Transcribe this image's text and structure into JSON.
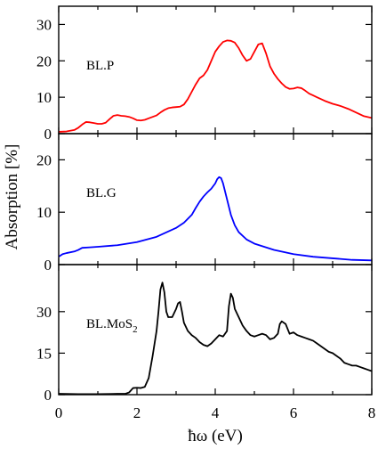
{
  "shared_y_label": "Absorption [%]",
  "x_label": "ħω (eV)",
  "chart_data": [
    {
      "type": "line",
      "panel_label": "BL.P",
      "color": "#ff0000",
      "xlim": [
        0,
        8
      ],
      "ylim": [
        0,
        35
      ],
      "yticks": [
        0,
        10,
        20,
        30
      ],
      "x": [
        0,
        0.2,
        0.4,
        0.5,
        0.6,
        0.7,
        0.8,
        0.9,
        1.0,
        1.1,
        1.2,
        1.3,
        1.4,
        1.5,
        1.6,
        1.7,
        1.8,
        1.9,
        2.0,
        2.1,
        2.2,
        2.3,
        2.4,
        2.5,
        2.6,
        2.7,
        2.8,
        2.9,
        3.0,
        3.1,
        3.2,
        3.3,
        3.4,
        3.5,
        3.6,
        3.7,
        3.8,
        3.9,
        4.0,
        4.1,
        4.2,
        4.3,
        4.4,
        4.5,
        4.6,
        4.7,
        4.8,
        4.9,
        5.0,
        5.1,
        5.2,
        5.3,
        5.4,
        5.5,
        5.6,
        5.7,
        5.8,
        5.9,
        6.0,
        6.1,
        6.2,
        6.3,
        6.4,
        6.5,
        6.6,
        6.8,
        7.0,
        7.2,
        7.4,
        7.6,
        7.8,
        8.0
      ],
      "y": [
        0.5,
        0.6,
        1.0,
        1.6,
        2.5,
        3.2,
        3.1,
        2.9,
        2.7,
        2.7,
        3.0,
        4.0,
        4.9,
        5.1,
        4.9,
        4.8,
        4.6,
        4.2,
        3.7,
        3.6,
        3.8,
        4.2,
        4.6,
        5.0,
        5.8,
        6.5,
        7.0,
        7.2,
        7.3,
        7.4,
        8.0,
        9.5,
        11.5,
        13.5,
        15.2,
        16.0,
        17.5,
        20.0,
        22.5,
        24.0,
        25.2,
        25.6,
        25.5,
        25.0,
        23.5,
        21.5,
        20.0,
        20.5,
        22.5,
        24.5,
        24.8,
        22.0,
        18.5,
        16.5,
        15.0,
        13.8,
        12.8,
        12.3,
        12.4,
        12.7,
        12.5,
        11.8,
        11.0,
        10.5,
        10.0,
        9.0,
        8.2,
        7.6,
        6.8,
        5.8,
        4.8,
        4.3
      ]
    },
    {
      "type": "line",
      "panel_label": "BL.G",
      "color": "#0000ff",
      "xlim": [
        0,
        8
      ],
      "ylim": [
        0,
        25
      ],
      "yticks": [
        0,
        10,
        20
      ],
      "x": [
        0,
        0.1,
        0.2,
        0.4,
        0.5,
        0.6,
        0.8,
        1.0,
        1.5,
        2.0,
        2.5,
        3.0,
        3.2,
        3.4,
        3.5,
        3.6,
        3.7,
        3.8,
        3.9,
        4.0,
        4.05,
        4.1,
        4.15,
        4.2,
        4.3,
        4.4,
        4.5,
        4.6,
        4.8,
        5.0,
        5.5,
        6.0,
        6.5,
        7.0,
        7.5,
        8.0
      ],
      "y": [
        1.5,
        2.0,
        2.2,
        2.5,
        2.8,
        3.2,
        3.3,
        3.4,
        3.7,
        4.3,
        5.3,
        7.0,
        8.0,
        9.5,
        10.8,
        12.0,
        13.0,
        13.8,
        14.5,
        15.5,
        16.3,
        16.7,
        16.5,
        15.5,
        12.5,
        9.5,
        7.5,
        6.2,
        4.8,
        4.0,
        2.8,
        2.0,
        1.5,
        1.2,
        0.9,
        0.8
      ]
    },
    {
      "type": "line",
      "panel_label": "BL.MoS",
      "panel_label_subscript": "2",
      "color": "#000000",
      "xlim": [
        0,
        8
      ],
      "ylim": [
        0,
        47
      ],
      "yticks": [
        0,
        15,
        30
      ],
      "x": [
        0,
        0.5,
        1.0,
        1.5,
        1.7,
        1.8,
        1.9,
        2.0,
        2.1,
        2.2,
        2.3,
        2.4,
        2.5,
        2.55,
        2.6,
        2.65,
        2.7,
        2.75,
        2.8,
        2.9,
        3.0,
        3.05,
        3.1,
        3.15,
        3.2,
        3.3,
        3.4,
        3.5,
        3.6,
        3.7,
        3.8,
        3.9,
        4.0,
        4.1,
        4.2,
        4.3,
        4.35,
        4.4,
        4.45,
        4.5,
        4.6,
        4.7,
        4.8,
        4.9,
        5.0,
        5.1,
        5.2,
        5.3,
        5.4,
        5.5,
        5.6,
        5.65,
        5.7,
        5.8,
        5.9,
        6.0,
        6.1,
        6.2,
        6.3,
        6.4,
        6.5,
        6.6,
        6.7,
        6.8,
        6.9,
        7.0,
        7.1,
        7.2,
        7.3,
        7.4,
        7.5,
        7.6,
        7.7,
        7.8,
        7.9,
        8.0
      ],
      "y": [
        0.3,
        0.2,
        0.2,
        0.3,
        0.3,
        0.8,
        2.4,
        2.5,
        2.4,
        2.8,
        6.0,
        14.0,
        23.0,
        30.0,
        38.0,
        40.5,
        37.0,
        30.0,
        28.0,
        28.0,
        31.0,
        33.0,
        33.5,
        30.0,
        26.0,
        23.0,
        21.5,
        20.5,
        19.0,
        18.0,
        17.5,
        18.5,
        20.0,
        21.5,
        21.0,
        23.0,
        32.0,
        36.5,
        35.0,
        31.0,
        28.0,
        25.0,
        23.0,
        21.5,
        21.0,
        21.5,
        22.0,
        21.5,
        20.0,
        20.5,
        22.0,
        25.5,
        26.5,
        25.5,
        22.0,
        22.5,
        21.5,
        21.0,
        20.5,
        20.0,
        19.5,
        18.5,
        17.5,
        16.5,
        15.5,
        15.0,
        14.0,
        13.0,
        11.5,
        11.0,
        10.5,
        10.5,
        10.0,
        9.5,
        9.0,
        8.5
      ]
    }
  ]
}
